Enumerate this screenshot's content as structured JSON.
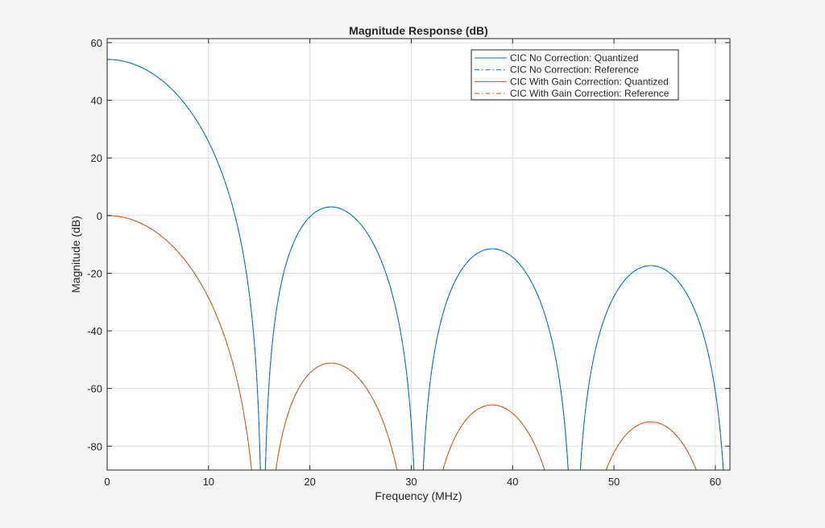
{
  "chart_data": {
    "type": "line",
    "title": "Magnitude Response (dB)",
    "xlabel": "Frequency (MHz)",
    "ylabel": "Magnitude (dB)",
    "xlim": [
      0,
      61.44
    ],
    "ylim": [
      -88.3,
      61.4
    ],
    "xticks": [
      0,
      10,
      20,
      30,
      40,
      50,
      60
    ],
    "yticks": [
      -80,
      -60,
      -40,
      -20,
      0,
      20,
      40,
      60
    ],
    "grid": true,
    "legend_position": "top-right",
    "response_model": {
      "stages": 4,
      "rate_change": 8,
      "null_spacing": 15.36
    },
    "series": [
      {
        "name": "CIC No Correction: Quantized",
        "color": "#0072bd",
        "style": "solid",
        "gain_offset_db": 54.19
      },
      {
        "name": "CIC No Correction: Reference",
        "color": "#0072bd",
        "style": "dashdot",
        "gain_offset_db": 54.19
      },
      {
        "name": "CIC With Gain Correction: Quantized",
        "color": "#d95319",
        "style": "solid",
        "gain_offset_db": 0
      },
      {
        "name": "CIC With Gain Correction: Reference",
        "color": "#d95319",
        "style": "dashdot",
        "gain_offset_db": 0
      }
    ]
  }
}
